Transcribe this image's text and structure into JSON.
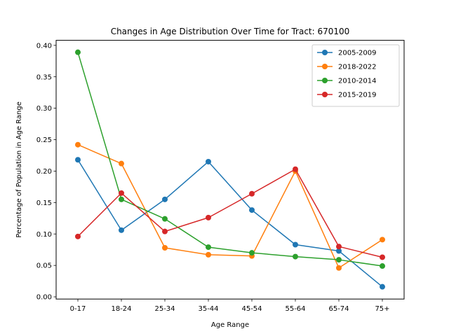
{
  "chart_data": {
    "type": "line",
    "title": "Changes in Age Distribution Over Time for Tract: 670100",
    "xlabel": "Age Range",
    "ylabel": "Percentage of Population in Age Range",
    "categories": [
      "0-17",
      "18-24",
      "25-34",
      "35-44",
      "45-54",
      "55-64",
      "65-74",
      "75+"
    ],
    "ylim": [
      -0.0035,
      0.408
    ],
    "yticks": [
      0.0,
      0.05,
      0.1,
      0.15,
      0.2,
      0.25,
      0.3,
      0.35,
      0.4
    ],
    "ytick_labels": [
      "0.00",
      "0.05",
      "0.10",
      "0.15",
      "0.20",
      "0.25",
      "0.30",
      "0.35",
      "0.40"
    ],
    "grid": false,
    "legend_position": "top-right",
    "series": [
      {
        "name": "2005-2009",
        "color": "#1f77b4",
        "values": [
          0.218,
          0.106,
          0.155,
          0.215,
          0.138,
          0.083,
          0.073,
          0.016
        ]
      },
      {
        "name": "2018-2022",
        "color": "#ff7f0e",
        "values": [
          0.242,
          0.212,
          0.078,
          0.067,
          0.065,
          0.2,
          0.046,
          0.091
        ]
      },
      {
        "name": "2010-2014",
        "color": "#2ca02c",
        "values": [
          0.389,
          0.155,
          0.124,
          0.079,
          0.07,
          0.064,
          0.059,
          0.049
        ]
      },
      {
        "name": "2015-2019",
        "color": "#d62728",
        "values": [
          0.096,
          0.165,
          0.104,
          0.126,
          0.164,
          0.203,
          0.08,
          0.063
        ]
      }
    ]
  }
}
